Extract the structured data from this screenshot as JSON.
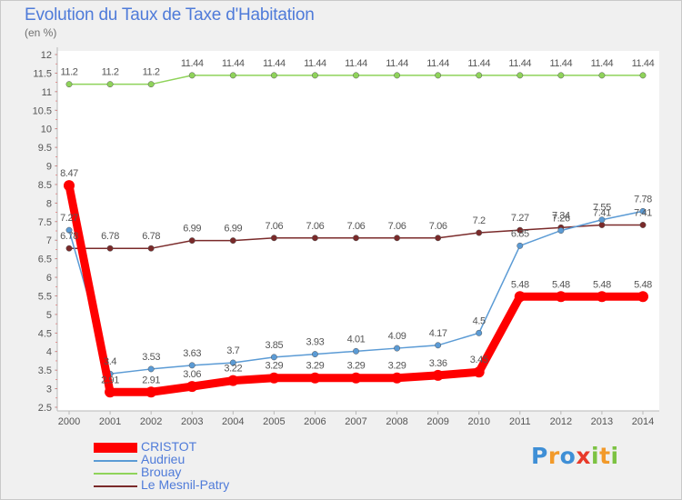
{
  "title": "Evolution du Taux de Taxe d'Habitation",
  "subtitle": "(en %)",
  "logo_letters": [
    {
      "ch": "P",
      "color": "#3f8fd6"
    },
    {
      "ch": "r",
      "color": "#f29a2a"
    },
    {
      "ch": "o",
      "color": "#3f8fd6"
    },
    {
      "ch": "x",
      "color": "#e83a2a"
    },
    {
      "ch": "i",
      "color": "#7cc242"
    },
    {
      "ch": "t",
      "color": "#f29a2a"
    },
    {
      "ch": "i",
      "color": "#7cc242"
    }
  ],
  "chart_data": {
    "type": "line",
    "title": "Evolution du Taux de Taxe d'Habitation",
    "ylabel": "(en %)",
    "xlabel": "",
    "grid": false,
    "legend_position": "bottom-left",
    "ylim": [
      2.5,
      12
    ],
    "yticks": [
      "2.5",
      "3",
      "3.5",
      "4",
      "4.5",
      "5",
      "5.5",
      "6",
      "6.5",
      "7",
      "7.5",
      "8",
      "8.5",
      "9",
      "9.5",
      "10",
      "10.5",
      "11",
      "11.5",
      "12"
    ],
    "x": [
      "2000",
      "2001",
      "2002",
      "2003",
      "2004",
      "2005",
      "2006",
      "2007",
      "2008",
      "2009",
      "2010",
      "2011",
      "2012",
      "2013",
      "2014"
    ],
    "series": [
      {
        "name": "CRISTOT",
        "color": "#ff0000",
        "values": [
          8.47,
          2.91,
          2.91,
          3.06,
          3.22,
          3.29,
          3.29,
          3.29,
          3.29,
          3.36,
          3.45,
          5.48,
          5.48,
          5.48,
          5.48
        ],
        "labels": [
          "8.47",
          "2.91",
          "2.91",
          "3.06",
          "3.22",
          "3.29",
          "3.29",
          "3.29",
          "3.29",
          "3.36",
          "3.45",
          "5.48",
          "5.48",
          "5.48",
          "5.48"
        ]
      },
      {
        "name": "Audrieu",
        "color": "#5b9bd5",
        "values": [
          7.27,
          3.4,
          3.53,
          3.63,
          3.7,
          3.85,
          3.93,
          4.01,
          4.09,
          4.17,
          4.5,
          6.85,
          7.26,
          7.55,
          7.78
        ],
        "labels": [
          "7.27",
          "3.4",
          "3.53",
          "3.63",
          "3.7",
          "3.85",
          "3.93",
          "4.01",
          "4.09",
          "4.17",
          "4.5",
          "6.85",
          "7.26",
          "7.55",
          "7.78"
        ]
      },
      {
        "name": "Brouay",
        "color": "#8fd35a",
        "values": [
          11.2,
          11.2,
          11.2,
          11.44,
          11.44,
          11.44,
          11.44,
          11.44,
          11.44,
          11.44,
          11.44,
          11.44,
          11.44,
          11.44,
          11.44
        ],
        "labels": [
          "11.2",
          "11.2",
          "11.2",
          "11.44",
          "11.44",
          "11.44",
          "11.44",
          "11.44",
          "11.44",
          "11.44",
          "11.44",
          "11.44",
          "11.44",
          "11.44",
          "11.44"
        ]
      },
      {
        "name": "Le Mesnil-Patry",
        "color": "#7a2a2a",
        "values": [
          6.78,
          6.78,
          6.78,
          6.99,
          6.99,
          7.06,
          7.06,
          7.06,
          7.06,
          7.06,
          7.2,
          7.27,
          7.34,
          7.41,
          7.41
        ],
        "labels": [
          "6.78",
          "6.78",
          "6.78",
          "6.99",
          "6.99",
          "7.06",
          "7.06",
          "7.06",
          "7.06",
          "7.06",
          "7.2",
          "7.27",
          "7.34",
          "7.41",
          "7.41"
        ]
      }
    ]
  }
}
